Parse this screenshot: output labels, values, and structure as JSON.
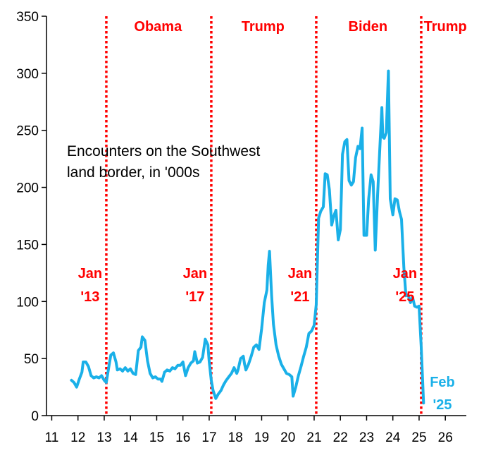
{
  "chart_data": {
    "type": "line",
    "title": "",
    "xlabel": "",
    "ylabel": "",
    "xlim": [
      10.8,
      26.8
    ],
    "ylim": [
      0,
      350
    ],
    "x_ticks": [
      11,
      12,
      13,
      14,
      15,
      16,
      17,
      18,
      19,
      20,
      21,
      22,
      23,
      24,
      25,
      26
    ],
    "x_tick_labels": [
      "11",
      "12",
      "13",
      "14",
      "15",
      "16",
      "17",
      "18",
      "19",
      "20",
      "21",
      "22",
      "23",
      "24",
      "25",
      "26"
    ],
    "y_ticks": [
      0,
      50,
      100,
      150,
      200,
      250,
      300,
      350
    ],
    "y_tick_labels": [
      "0",
      "50",
      "100",
      "150",
      "200",
      "250",
      "300",
      "350"
    ],
    "grid": false,
    "legend": "none",
    "annotation": [
      "Encounters on the Southwest",
      "land border, in '000s"
    ],
    "colors": {
      "series": "#1ab0e8",
      "markers": "#ff0000",
      "axis": "#000000"
    },
    "eras": [
      {
        "label": "Obama",
        "x": 15.05
      },
      {
        "label": "Trump",
        "x": 19.05
      },
      {
        "label": "Biden",
        "x": 23.05
      },
      {
        "label": "Trump",
        "x": 26.0
      }
    ],
    "vlines": [
      {
        "x": 13.08,
        "label": [
          "Jan",
          "'13"
        ]
      },
      {
        "x": 17.08,
        "label": [
          "Jan",
          "'17"
        ]
      },
      {
        "x": 21.08,
        "label": [
          "Jan",
          "'21"
        ]
      },
      {
        "x": 25.08,
        "label": [
          "Jan",
          "'25"
        ]
      }
    ],
    "end_label": [
      "Feb",
      "'25"
    ],
    "series": [
      {
        "values": [
          [
            11.75,
            31
          ],
          [
            11.85,
            29
          ],
          [
            11.95,
            25
          ],
          [
            12.05,
            32
          ],
          [
            12.15,
            38
          ],
          [
            12.2,
            47
          ],
          [
            12.3,
            47
          ],
          [
            12.4,
            43
          ],
          [
            12.5,
            35
          ],
          [
            12.6,
            33
          ],
          [
            12.7,
            34
          ],
          [
            12.8,
            33
          ],
          [
            12.9,
            35
          ],
          [
            13.0,
            31
          ],
          [
            13.08,
            29
          ],
          [
            13.17,
            42
          ],
          [
            13.25,
            53
          ],
          [
            13.35,
            55
          ],
          [
            13.45,
            47
          ],
          [
            13.5,
            40
          ],
          [
            13.6,
            41
          ],
          [
            13.7,
            39
          ],
          [
            13.8,
            42
          ],
          [
            13.9,
            39
          ],
          [
            14.0,
            41
          ],
          [
            14.1,
            37
          ],
          [
            14.2,
            36
          ],
          [
            14.3,
            57
          ],
          [
            14.4,
            60
          ],
          [
            14.45,
            69
          ],
          [
            14.55,
            66
          ],
          [
            14.65,
            48
          ],
          [
            14.75,
            37
          ],
          [
            14.85,
            33
          ],
          [
            14.95,
            34
          ],
          [
            15.05,
            32
          ],
          [
            15.15,
            32
          ],
          [
            15.2,
            30
          ],
          [
            15.3,
            38
          ],
          [
            15.4,
            40
          ],
          [
            15.5,
            39
          ],
          [
            15.6,
            42
          ],
          [
            15.7,
            41
          ],
          [
            15.8,
            44
          ],
          [
            15.9,
            44
          ],
          [
            16.0,
            47
          ],
          [
            16.1,
            35
          ],
          [
            16.2,
            42
          ],
          [
            16.3,
            46
          ],
          [
            16.4,
            48
          ],
          [
            16.45,
            56
          ],
          [
            16.55,
            46
          ],
          [
            16.65,
            47
          ],
          [
            16.75,
            51
          ],
          [
            16.85,
            67
          ],
          [
            16.95,
            62
          ],
          [
            17.0,
            48
          ],
          [
            17.08,
            31
          ],
          [
            17.15,
            22
          ],
          [
            17.25,
            15
          ],
          [
            17.35,
            19
          ],
          [
            17.45,
            22
          ],
          [
            17.55,
            27
          ],
          [
            17.65,
            31
          ],
          [
            17.75,
            34
          ],
          [
            17.85,
            37
          ],
          [
            17.95,
            42
          ],
          [
            18.05,
            37
          ],
          [
            18.1,
            40
          ],
          [
            18.2,
            50
          ],
          [
            18.3,
            52
          ],
          [
            18.35,
            45
          ],
          [
            18.4,
            40
          ],
          [
            18.5,
            45
          ],
          [
            18.6,
            52
          ],
          [
            18.7,
            60
          ],
          [
            18.8,
            62
          ],
          [
            18.9,
            58
          ],
          [
            19.0,
            76
          ],
          [
            19.1,
            99
          ],
          [
            19.2,
            110
          ],
          [
            19.25,
            132
          ],
          [
            19.3,
            144
          ],
          [
            19.38,
            105
          ],
          [
            19.45,
            80
          ],
          [
            19.55,
            62
          ],
          [
            19.65,
            52
          ],
          [
            19.75,
            45
          ],
          [
            19.85,
            41
          ],
          [
            19.95,
            37
          ],
          [
            20.05,
            36
          ],
          [
            20.15,
            34
          ],
          [
            20.2,
            17
          ],
          [
            20.3,
            25
          ],
          [
            20.4,
            35
          ],
          [
            20.5,
            43
          ],
          [
            20.6,
            52
          ],
          [
            20.7,
            60
          ],
          [
            20.8,
            72
          ],
          [
            20.9,
            74
          ],
          [
            21.0,
            79
          ],
          [
            21.08,
            97
          ],
          [
            21.17,
            173
          ],
          [
            21.25,
            179
          ],
          [
            21.35,
            183
          ],
          [
            21.42,
            212
          ],
          [
            21.5,
            211
          ],
          [
            21.58,
            198
          ],
          [
            21.67,
            167
          ],
          [
            21.75,
            175
          ],
          [
            21.83,
            180
          ],
          [
            21.92,
            154
          ],
          [
            22.0,
            163
          ],
          [
            22.08,
            229
          ],
          [
            22.17,
            240
          ],
          [
            22.25,
            242
          ],
          [
            22.33,
            206
          ],
          [
            22.42,
            202
          ],
          [
            22.5,
            205
          ],
          [
            22.58,
            226
          ],
          [
            22.67,
            236
          ],
          [
            22.75,
            234
          ],
          [
            22.83,
            252
          ],
          [
            22.9,
            158
          ],
          [
            23.0,
            158
          ],
          [
            23.08,
            190
          ],
          [
            23.17,
            211
          ],
          [
            23.25,
            205
          ],
          [
            23.33,
            145
          ],
          [
            23.42,
            194
          ],
          [
            23.5,
            233
          ],
          [
            23.58,
            270
          ],
          [
            23.62,
            244
          ],
          [
            23.67,
            243
          ],
          [
            23.75,
            248
          ],
          [
            23.83,
            302
          ],
          [
            23.9,
            190
          ],
          [
            24.0,
            176
          ],
          [
            24.08,
            190
          ],
          [
            24.17,
            189
          ],
          [
            24.25,
            179
          ],
          [
            24.33,
            172
          ],
          [
            24.42,
            130
          ],
          [
            24.5,
            105
          ],
          [
            24.58,
            106
          ],
          [
            24.67,
            99
          ],
          [
            24.75,
            104
          ],
          [
            24.83,
            96
          ],
          [
            24.92,
            95
          ],
          [
            25.0,
            96
          ],
          [
            25.08,
            61
          ],
          [
            25.17,
            11
          ]
        ]
      }
    ]
  }
}
